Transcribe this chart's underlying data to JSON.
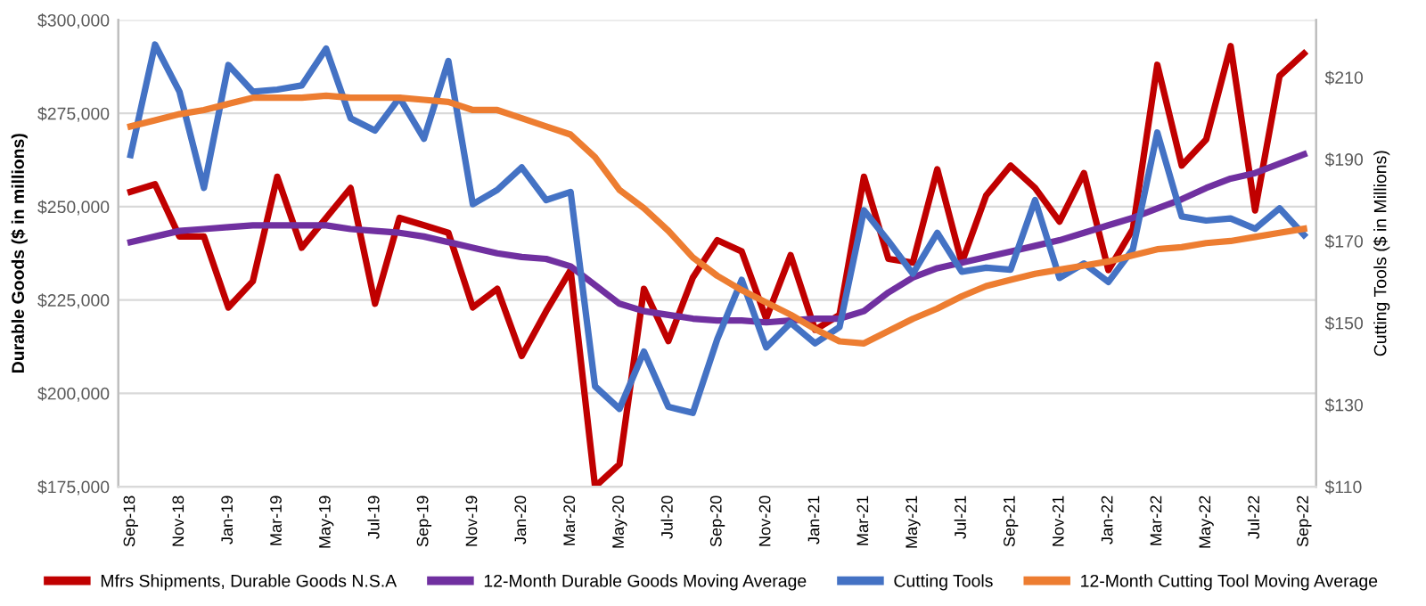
{
  "chart_data": {
    "type": "line",
    "ylabel": "Durable Goods ($ in millions)",
    "y2label": "Cutting Tools ($ in Millions)",
    "categories": [
      "Sep-18",
      null,
      "Nov-18",
      null,
      "Jan-19",
      null,
      "Mar-19",
      null,
      "May-19",
      null,
      "Jul-19",
      null,
      "Sep-19",
      null,
      "Nov-19",
      null,
      "Jan-20",
      null,
      "Mar-20",
      null,
      "May-20",
      null,
      "Jul-20",
      null,
      "Sep-20",
      null,
      "Nov-20",
      null,
      "Jan-21",
      null,
      "Mar-21",
      null,
      "May-21",
      null,
      "Jul-21",
      null,
      "Sep-21",
      null,
      "Nov-21",
      null,
      "Jan-22",
      null,
      "Mar-22",
      null,
      "May-22",
      null,
      "Jul-22",
      null,
      "Sep-22"
    ],
    "series": [
      {
        "name": "Mfrs Shipments, Durable Goods N.S.A",
        "color": "#c00000",
        "values": [
          254000,
          256000,
          242000,
          242000,
          223000,
          230000,
          258000,
          239000,
          247000,
          255000,
          224000,
          247000,
          245000,
          243000,
          223000,
          228000,
          210000,
          222000,
          233000,
          175000,
          181000,
          228000,
          214000,
          231000,
          241000,
          238000,
          220000,
          237000,
          217000,
          221000,
          258000,
          236000,
          235000,
          260000,
          235000,
          253000,
          261000,
          255000,
          246000,
          259000,
          233000,
          244000,
          288000,
          261000,
          268000,
          293000,
          249000,
          285000,
          291000
        ]
      },
      {
        "name": "12-Month Durable Goods Moving Average",
        "color": "#7030a0",
        "values": [
          240500,
          242000,
          243500,
          244000,
          244500,
          245000,
          245000,
          245000,
          245000,
          244000,
          243500,
          243000,
          242000,
          240500,
          239000,
          237500,
          236500,
          236000,
          234000,
          229000,
          224000,
          222000,
          221000,
          220000,
          219500,
          219500,
          219000,
          219500,
          220000,
          220000,
          222000,
          227000,
          231000,
          233500,
          235000,
          236500,
          238000,
          239500,
          241000,
          243000,
          245000,
          247000,
          249500,
          252000,
          255000,
          257500,
          259000,
          261500,
          264000
        ]
      },
      {
        "name": "Cutting Tools",
        "color": "#4472c4",
        "axis": "y2",
        "values": [
          191,
          218,
          206.5,
          183,
          213,
          206.5,
          207,
          208,
          217,
          200,
          197,
          205,
          195,
          214,
          179,
          182.5,
          188,
          180,
          182,
          134.5,
          129,
          143,
          129.5,
          128,
          146,
          160.5,
          144,
          150,
          145,
          149,
          177.5,
          170,
          162,
          172,
          162.5,
          163.5,
          163,
          180,
          161,
          164.5,
          160,
          168,
          196.5,
          176,
          175,
          175.5,
          173,
          178,
          171.5
        ]
      },
      {
        "name": "12-Month Cutting Tool Moving Average",
        "color": "#ed7d31",
        "axis": "y2",
        "values": [
          198,
          199.5,
          201,
          202,
          203.5,
          205,
          205,
          205,
          205.5,
          205,
          205,
          205,
          204.5,
          204,
          202,
          202,
          200,
          198,
          196,
          190.5,
          182.5,
          178,
          172.5,
          166,
          161.5,
          158,
          155,
          152,
          148.5,
          145.5,
          145,
          148,
          151,
          153.5,
          156.5,
          159,
          160.5,
          162,
          163,
          164,
          165,
          166.5,
          168,
          168.5,
          169.5,
          170,
          171,
          172,
          173
        ]
      }
    ],
    "ylim": [
      175000,
      300000
    ],
    "yticks": [
      {
        "value": 175000,
        "label": "$175,000"
      },
      {
        "value": 200000,
        "label": "$200,000"
      },
      {
        "value": 225000,
        "label": "$225,000"
      },
      {
        "value": 250000,
        "label": "$250,000"
      },
      {
        "value": 275000,
        "label": "$275,000"
      },
      {
        "value": 300000,
        "label": "$300,000"
      }
    ],
    "y2lim": [
      110,
      224
    ],
    "y2ticks": [
      {
        "value": 110,
        "label": "$110"
      },
      {
        "value": 130,
        "label": "$130"
      },
      {
        "value": 150,
        "label": "$150"
      },
      {
        "value": 170,
        "label": "$170"
      },
      {
        "value": 190,
        "label": "$190"
      },
      {
        "value": 210,
        "label": "$210"
      }
    ],
    "grid": "y",
    "legend": "bottom",
    "line_style": "solid"
  }
}
